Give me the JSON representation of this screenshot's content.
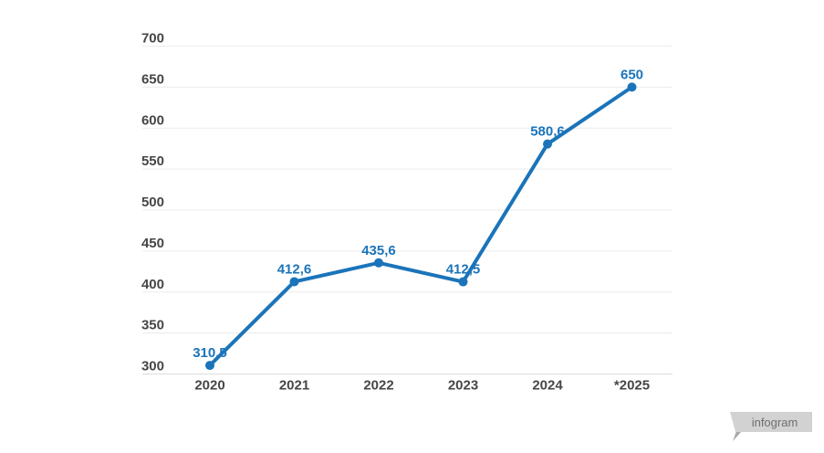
{
  "chart_data": {
    "type": "line",
    "title": "",
    "categories": [
      "2020",
      "2021",
      "2022",
      "2023",
      "2024",
      "*2025"
    ],
    "series": [
      {
        "name": "values",
        "values": [
          310.5,
          412.6,
          435.6,
          412.5,
          580.6,
          650
        ],
        "labels": [
          "310,5",
          "412,6",
          "435,6",
          "412,5",
          "580,6",
          "650"
        ]
      }
    ],
    "ylim": [
      300,
      700
    ],
    "yticks": [
      300,
      350,
      400,
      450,
      500,
      550,
      600,
      650,
      700
    ],
    "grid": true,
    "legend": "none",
    "line_color": "#1b74b9",
    "marker_color": "#1b74b9",
    "label_color": "#1b74b9",
    "axis_text_color": "#464646",
    "gridline_color": "#ececec",
    "axis_line_color": "#dcdcdc"
  },
  "watermark": {
    "label": "infogram",
    "bg_color": "#d2d2d2",
    "tail_color": "#a8a8a8",
    "text_color": "#6f6f6f"
  }
}
